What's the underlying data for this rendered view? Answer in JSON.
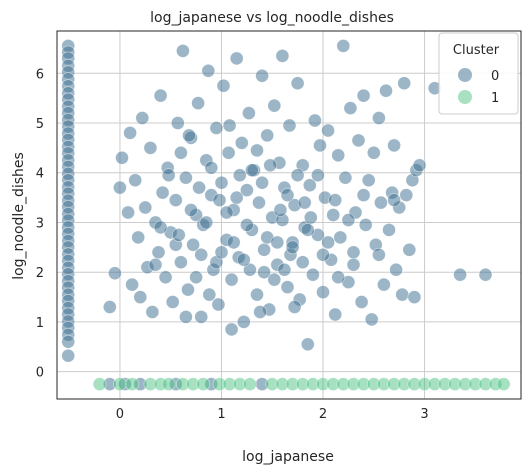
{
  "chart_data": {
    "type": "scatter",
    "title": "log_japanese vs log_noodle_dishes",
    "xlabel": "log_japanese",
    "ylabel": "log_noodle_dishes",
    "xlim": [
      -0.62,
      3.95
    ],
    "ylim": [
      -0.55,
      6.85
    ],
    "xticks": [
      0,
      1,
      2,
      3
    ],
    "yticks": [
      0,
      1,
      2,
      3,
      4,
      5,
      6
    ],
    "grid": true,
    "legend": {
      "title": "Cluster",
      "placement": "top-right",
      "entries": [
        "0",
        "1"
      ]
    },
    "colors": {
      "cluster_0": "#3b6d8f",
      "cluster_1": "#4fc486"
    },
    "series": [
      {
        "name": "0",
        "points": [
          [
            -0.51,
            6.55
          ],
          [
            -0.51,
            6.42
          ],
          [
            -0.51,
            6.3
          ],
          [
            -0.51,
            6.15
          ],
          [
            -0.51,
            6.02
          ],
          [
            -0.51,
            5.88
          ],
          [
            -0.51,
            5.74
          ],
          [
            -0.51,
            5.6
          ],
          [
            -0.51,
            5.47
          ],
          [
            -0.51,
            5.33
          ],
          [
            -0.51,
            5.2
          ],
          [
            -0.51,
            5.06
          ],
          [
            -0.51,
            4.93
          ],
          [
            -0.51,
            4.79
          ],
          [
            -0.51,
            4.66
          ],
          [
            -0.51,
            4.52
          ],
          [
            -0.51,
            4.39
          ],
          [
            -0.51,
            4.25
          ],
          [
            -0.51,
            4.12
          ],
          [
            -0.51,
            3.98
          ],
          [
            -0.51,
            3.85
          ],
          [
            -0.51,
            3.71
          ],
          [
            -0.51,
            3.58
          ],
          [
            -0.51,
            3.44
          ],
          [
            -0.51,
            3.31
          ],
          [
            -0.51,
            3.17
          ],
          [
            -0.51,
            3.04
          ],
          [
            -0.51,
            2.9
          ],
          [
            -0.51,
            2.77
          ],
          [
            -0.51,
            2.63
          ],
          [
            -0.51,
            2.5
          ],
          [
            -0.51,
            2.36
          ],
          [
            -0.51,
            2.23
          ],
          [
            -0.51,
            2.09
          ],
          [
            -0.51,
            1.96
          ],
          [
            -0.51,
            1.82
          ],
          [
            -0.51,
            1.69
          ],
          [
            -0.51,
            1.55
          ],
          [
            -0.51,
            1.42
          ],
          [
            -0.51,
            1.28
          ],
          [
            -0.51,
            1.15
          ],
          [
            -0.51,
            1.01
          ],
          [
            -0.51,
            0.88
          ],
          [
            -0.51,
            0.74
          ],
          [
            -0.51,
            0.6
          ],
          [
            -0.51,
            0.32
          ],
          [
            -0.1,
            -0.25
          ],
          [
            0.05,
            -0.25
          ],
          [
            0.2,
            -0.25
          ],
          [
            0.55,
            -0.25
          ],
          [
            0.9,
            -0.25
          ],
          [
            1.4,
            -0.25
          ],
          [
            -0.1,
            1.3
          ],
          [
            -0.05,
            1.98
          ],
          [
            0.0,
            3.7
          ],
          [
            0.02,
            4.3
          ],
          [
            0.08,
            3.2
          ],
          [
            0.1,
            4.8
          ],
          [
            0.12,
            1.75
          ],
          [
            0.15,
            3.85
          ],
          [
            0.18,
            2.7
          ],
          [
            0.2,
            1.5
          ],
          [
            0.22,
            5.1
          ],
          [
            0.25,
            3.3
          ],
          [
            0.27,
            2.1
          ],
          [
            0.3,
            4.5
          ],
          [
            0.32,
            1.2
          ],
          [
            0.35,
            3.0
          ],
          [
            0.38,
            2.4
          ],
          [
            0.4,
            5.55
          ],
          [
            0.42,
            3.6
          ],
          [
            0.45,
            1.9
          ],
          [
            0.47,
            4.1
          ],
          [
            0.5,
            2.8
          ],
          [
            0.52,
            1.4
          ],
          [
            0.55,
            3.45
          ],
          [
            0.57,
            5.0
          ],
          [
            0.6,
            2.2
          ],
          [
            0.62,
            6.45
          ],
          [
            0.65,
            3.9
          ],
          [
            0.67,
            1.65
          ],
          [
            0.7,
            4.7
          ],
          [
            0.72,
            2.55
          ],
          [
            0.75,
            3.15
          ],
          [
            0.77,
            5.4
          ],
          [
            0.8,
            1.1
          ],
          [
            0.82,
            2.95
          ],
          [
            0.85,
            4.25
          ],
          [
            0.87,
            6.05
          ],
          [
            0.9,
            3.55
          ],
          [
            0.92,
            2.05
          ],
          [
            0.95,
            4.9
          ],
          [
            0.97,
            1.35
          ],
          [
            1.0,
            3.8
          ],
          [
            1.02,
            5.75
          ],
          [
            1.05,
            2.65
          ],
          [
            1.07,
            4.4
          ],
          [
            1.1,
            1.85
          ],
          [
            1.12,
            3.25
          ],
          [
            1.15,
            6.3
          ],
          [
            1.17,
            2.3
          ],
          [
            1.2,
            4.6
          ],
          [
            1.22,
            1.0
          ],
          [
            1.25,
            3.65
          ],
          [
            1.27,
            5.2
          ],
          [
            1.3,
            2.85
          ],
          [
            1.32,
            4.05
          ],
          [
            1.35,
            1.55
          ],
          [
            1.37,
            3.4
          ],
          [
            1.4,
            5.95
          ],
          [
            1.42,
            2.45
          ],
          [
            1.45,
            4.75
          ],
          [
            1.47,
            1.25
          ],
          [
            1.5,
            3.1
          ],
          [
            1.52,
            5.35
          ],
          [
            1.55,
            2.15
          ],
          [
            1.57,
            4.2
          ],
          [
            1.6,
            6.35
          ],
          [
            1.62,
            3.7
          ],
          [
            1.65,
            1.7
          ],
          [
            1.67,
            4.95
          ],
          [
            1.7,
            2.6
          ],
          [
            1.72,
            3.35
          ],
          [
            1.75,
            5.8
          ],
          [
            1.77,
            1.45
          ],
          [
            1.8,
            4.15
          ],
          [
            1.82,
            2.9
          ],
          [
            1.85,
            0.55
          ],
          [
            1.87,
            3.75
          ],
          [
            1.9,
            1.95
          ],
          [
            1.92,
            5.05
          ],
          [
            1.95,
            2.75
          ],
          [
            1.97,
            4.55
          ],
          [
            2.0,
            1.6
          ],
          [
            2.02,
            3.5
          ],
          [
            2.05,
            4.85
          ],
          [
            2.08,
            2.25
          ],
          [
            2.1,
            3.15
          ],
          [
            2.12,
            1.15
          ],
          [
            2.15,
            4.35
          ],
          [
            2.17,
            2.7
          ],
          [
            2.2,
            6.55
          ],
          [
            2.22,
            3.9
          ],
          [
            2.25,
            1.8
          ],
          [
            2.27,
            5.3
          ],
          [
            2.3,
            2.4
          ],
          [
            2.32,
            3.2
          ],
          [
            2.35,
            4.65
          ],
          [
            2.38,
            1.4
          ],
          [
            2.4,
            5.55
          ],
          [
            2.42,
            2.95
          ],
          [
            2.45,
            3.85
          ],
          [
            2.48,
            1.05
          ],
          [
            2.5,
            4.4
          ],
          [
            2.52,
            2.55
          ],
          [
            2.55,
            5.1
          ],
          [
            2.57,
            3.4
          ],
          [
            2.6,
            1.75
          ],
          [
            2.62,
            5.65
          ],
          [
            2.65,
            2.85
          ],
          [
            2.68,
            3.6
          ],
          [
            2.7,
            4.55
          ],
          [
            2.72,
            2.05
          ],
          [
            2.75,
            3.3
          ],
          [
            2.78,
            1.55
          ],
          [
            2.8,
            5.8
          ],
          [
            2.82,
            3.55
          ],
          [
            2.85,
            2.45
          ],
          [
            2.88,
            3.85
          ],
          [
            2.9,
            1.5
          ],
          [
            2.92,
            4.05
          ],
          [
            2.95,
            4.15
          ],
          [
            3.1,
            5.7
          ],
          [
            3.35,
            1.95
          ],
          [
            3.6,
            1.95
          ],
          [
            0.4,
            2.9
          ],
          [
            0.6,
            4.4
          ],
          [
            0.75,
            1.9
          ],
          [
            0.85,
            3.0
          ],
          [
            0.95,
            2.2
          ],
          [
            1.05,
            3.2
          ],
          [
            1.1,
            0.85
          ],
          [
            1.18,
            3.95
          ],
          [
            1.28,
            2.05
          ],
          [
            1.35,
            4.45
          ],
          [
            1.45,
            2.7
          ],
          [
            1.52,
            1.85
          ],
          [
            1.6,
            3.05
          ],
          [
            1.68,
            2.35
          ],
          [
            1.75,
            3.95
          ],
          [
            1.85,
            2.85
          ],
          [
            0.55,
            2.55
          ],
          [
            0.7,
            3.25
          ],
          [
            0.9,
            4.1
          ],
          [
            1.0,
            2.4
          ],
          [
            1.15,
            3.5
          ],
          [
            1.25,
            2.95
          ],
          [
            1.4,
            3.8
          ],
          [
            1.55,
            2.6
          ],
          [
            1.65,
            3.55
          ],
          [
            1.8,
            2.2
          ],
          [
            0.65,
            1.1
          ],
          [
            0.78,
            3.7
          ],
          [
            0.88,
            1.55
          ],
          [
            1.08,
            4.95
          ],
          [
            1.22,
            2.25
          ],
          [
            1.38,
            1.2
          ],
          [
            1.48,
            4.15
          ],
          [
            1.62,
            2.05
          ],
          [
            1.72,
            1.3
          ],
          [
            1.82,
            3.4
          ],
          [
            1.95,
            3.95
          ],
          [
            2.05,
            2.6
          ],
          [
            2.15,
            1.9
          ],
          [
            2.25,
            3.05
          ],
          [
            0.35,
            2.15
          ],
          [
            0.48,
            3.95
          ],
          [
            0.58,
            2.75
          ],
          [
            0.68,
            4.75
          ],
          [
            0.8,
            2.35
          ],
          [
            0.98,
            3.45
          ],
          [
            1.12,
            2.6
          ],
          [
            1.3,
            4.05
          ],
          [
            1.42,
            2.0
          ],
          [
            1.58,
            3.25
          ],
          [
            1.7,
            2.5
          ],
          [
            1.88,
            3.1
          ],
          [
            2.0,
            2.35
          ],
          [
            2.12,
            3.45
          ],
          [
            2.3,
            2.15
          ],
          [
            2.4,
            3.55
          ],
          [
            2.55,
            2.35
          ],
          [
            2.7,
            3.45
          ]
        ]
      },
      {
        "name": "1",
        "points": [
          [
            -0.2,
            -0.25
          ],
          [
            0.0,
            -0.25
          ],
          [
            0.12,
            -0.25
          ],
          [
            0.3,
            -0.25
          ],
          [
            0.4,
            -0.25
          ],
          [
            0.48,
            -0.25
          ],
          [
            0.62,
            -0.25
          ],
          [
            0.72,
            -0.25
          ],
          [
            0.82,
            -0.25
          ],
          [
            0.98,
            -0.25
          ],
          [
            1.08,
            -0.25
          ],
          [
            1.18,
            -0.25
          ],
          [
            1.28,
            -0.25
          ],
          [
            1.5,
            -0.25
          ],
          [
            1.6,
            -0.25
          ],
          [
            1.7,
            -0.25
          ],
          [
            1.8,
            -0.25
          ],
          [
            1.9,
            -0.25
          ],
          [
            2.0,
            -0.25
          ],
          [
            2.1,
            -0.25
          ],
          [
            2.2,
            -0.25
          ],
          [
            2.3,
            -0.25
          ],
          [
            2.4,
            -0.25
          ],
          [
            2.5,
            -0.25
          ],
          [
            2.6,
            -0.25
          ],
          [
            2.7,
            -0.25
          ],
          [
            2.8,
            -0.25
          ],
          [
            2.9,
            -0.25
          ],
          [
            3.0,
            -0.25
          ],
          [
            3.1,
            -0.25
          ],
          [
            3.2,
            -0.25
          ],
          [
            3.3,
            -0.25
          ],
          [
            3.4,
            -0.25
          ],
          [
            3.5,
            -0.25
          ],
          [
            3.6,
            -0.25
          ],
          [
            3.7,
            -0.25
          ],
          [
            3.78,
            -0.25
          ]
        ]
      }
    ]
  }
}
